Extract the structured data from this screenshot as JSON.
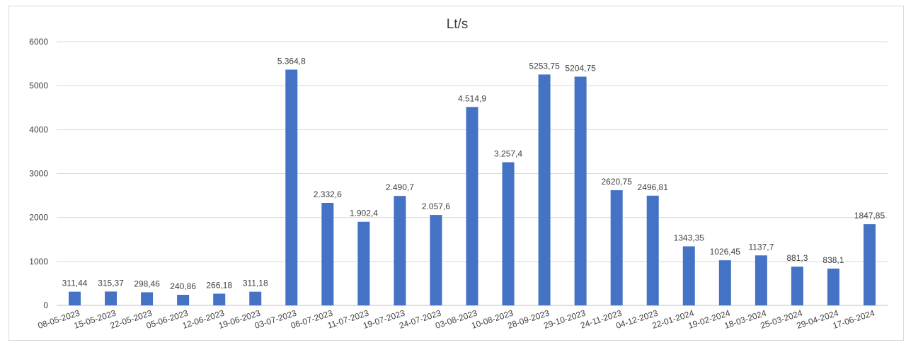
{
  "chart_data": {
    "type": "bar",
    "title": "Lt/s",
    "xlabel": "",
    "ylabel": "",
    "ylim": [
      0,
      6000
    ],
    "yticks": [
      "0",
      "1000",
      "2000",
      "3000",
      "4000",
      "5000",
      "6000"
    ],
    "grid": true,
    "legend": "none",
    "bar_color": "#4472c4",
    "categories": [
      "08-05-2023",
      "15-05-2023",
      "22-05-2023",
      "05-06-2023",
      "12-06-2023",
      "19-06-2023",
      "03-07-2023",
      "06-07-2023",
      "11-07-2023",
      "19-07-2023",
      "24-07-2023",
      "03-08-2023",
      "10-08-2023",
      "28-09-2023",
      "29-10-2023",
      "24-11-2023",
      "04-12-2023",
      "22-01-2024",
      "19-02-2024",
      "18-03-2024",
      "25-03-2024",
      "29-04-2024",
      "17-06-2024"
    ],
    "values": [
      311.44,
      315.37,
      298.46,
      240.86,
      266.18,
      311.18,
      5364.8,
      2332.6,
      1902.4,
      2490.7,
      2057.6,
      4514.9,
      3257.4,
      5253.75,
      5204.75,
      2620.75,
      2496.81,
      1343.35,
      1026.45,
      1137.7,
      881.3,
      838.1,
      1847.85
    ],
    "data_labels": [
      "311,44",
      "315,37",
      "298,46",
      "240,86",
      "266,18",
      "311,18",
      "5.364,8",
      "2.332,6",
      "1.902,4",
      "2.490,7",
      "2.057,6",
      "4.514,9",
      "3.257,4",
      "5253,75",
      "5204,75",
      "2620,75",
      "2496,81",
      "1343,35",
      "1026,45",
      "1137,7",
      "881,3",
      "838,1",
      "1847,85"
    ]
  }
}
